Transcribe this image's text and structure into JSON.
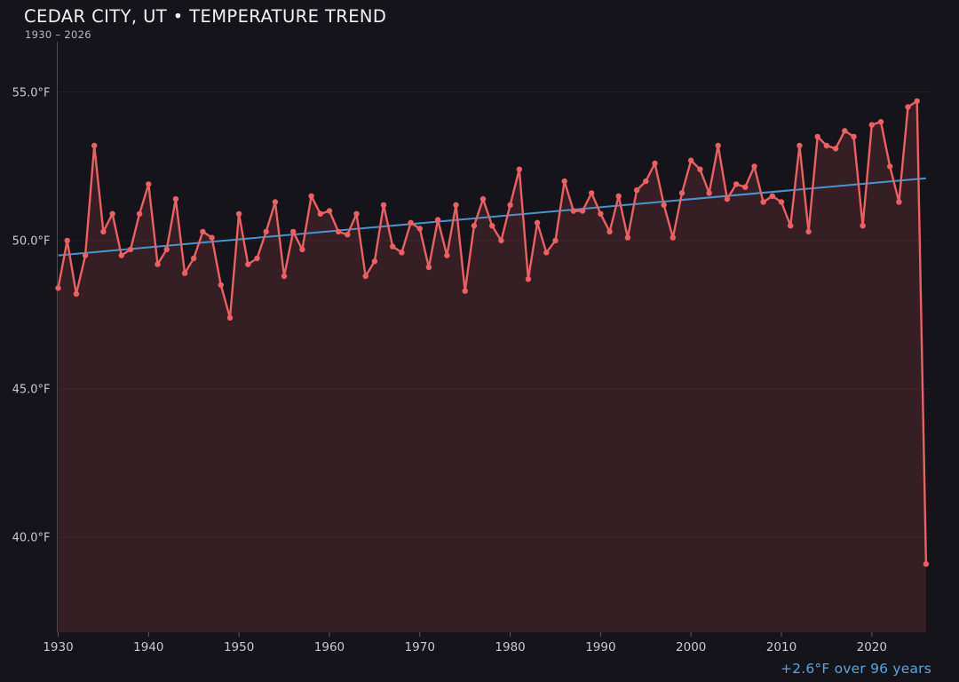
{
  "header": {
    "title": "CEDAR CITY, UT • TEMPERATURE TREND",
    "subtitle": "1930 – 2026"
  },
  "footer": {
    "trend_label": "+2.6°F over 96 years"
  },
  "colors": {
    "background": "#14141a",
    "title_text": "#f2f2f5",
    "subtitle_text": "#b9b9c2",
    "tick_text": "#c9c9d1",
    "gridline": "rgba(255,255,255,0.055)",
    "axis_spine": "#4a4a53",
    "tick_mark": "#5a5a64",
    "temperature_line": "#ec5f63",
    "temperature_marker": "#ec5f63",
    "area_fill": "rgba(233,93,99,0.16)",
    "trend_line": "#4596cf",
    "trend_label_text": "#58a6e0"
  },
  "chart_data": {
    "type": "line",
    "title": "CEDAR CITY, UT • TEMPERATURE TREND",
    "subtitle": "1930 – 2026",
    "xlabel": "",
    "ylabel": "",
    "grid": "horizontal-faint",
    "legend": "none",
    "marker": "circle",
    "area_fill": true,
    "xlim": [
      1929.9,
      2026.5
    ],
    "ylim": [
      36.8,
      56.7
    ],
    "years": [
      1930,
      1931,
      1932,
      1933,
      1934,
      1935,
      1936,
      1937,
      1938,
      1939,
      1940,
      1941,
      1942,
      1943,
      1944,
      1945,
      1946,
      1947,
      1948,
      1949,
      1950,
      1951,
      1952,
      1953,
      1954,
      1955,
      1956,
      1957,
      1958,
      1959,
      1960,
      1961,
      1962,
      1963,
      1964,
      1965,
      1966,
      1967,
      1968,
      1969,
      1970,
      1971,
      1972,
      1973,
      1974,
      1975,
      1976,
      1977,
      1978,
      1979,
      1980,
      1981,
      1982,
      1983,
      1984,
      1985,
      1986,
      1987,
      1988,
      1989,
      1990,
      1991,
      1992,
      1993,
      1994,
      1995,
      1996,
      1997,
      1998,
      1999,
      2000,
      2001,
      2002,
      2003,
      2004,
      2005,
      2006,
      2007,
      2008,
      2009,
      2010,
      2011,
      2012,
      2013,
      2014,
      2015,
      2016,
      2017,
      2018,
      2019,
      2020,
      2021,
      2022,
      2023,
      2024,
      2025,
      2026
    ],
    "values": [
      48.4,
      50.0,
      48.2,
      49.5,
      53.2,
      50.3,
      50.9,
      49.5,
      49.7,
      50.9,
      51.9,
      49.2,
      49.7,
      51.4,
      48.9,
      49.4,
      50.3,
      50.1,
      48.5,
      47.4,
      50.9,
      49.2,
      49.4,
      50.3,
      51.3,
      48.8,
      50.3,
      49.7,
      51.5,
      50.9,
      51.0,
      50.3,
      50.2,
      50.9,
      48.8,
      49.3,
      51.2,
      49.8,
      49.6,
      50.6,
      50.4,
      49.1,
      50.7,
      49.5,
      51.2,
      48.3,
      50.5,
      51.4,
      50.5,
      50.0,
      51.2,
      52.4,
      48.7,
      50.6,
      49.6,
      50.0,
      52.0,
      51.0,
      51.0,
      51.6,
      50.9,
      50.3,
      51.5,
      50.1,
      51.7,
      52.0,
      52.6,
      51.2,
      50.1,
      51.6,
      52.7,
      52.4,
      51.6,
      53.2,
      51.4,
      51.9,
      51.8,
      52.5,
      51.3,
      51.5,
      51.3,
      50.5,
      53.2,
      50.3,
      53.5,
      53.2,
      53.1,
      53.7,
      53.5,
      50.5,
      53.9,
      54.0,
      52.5,
      51.3,
      54.5,
      54.7,
      39.1
    ],
    "trend": {
      "start_year": 1930,
      "start_value": 49.5,
      "end_year": 2026,
      "end_value": 52.1,
      "change_label": "+2.6°F over 96 years"
    },
    "y_ticks": [
      {
        "value": 55,
        "label": "55.0°F"
      },
      {
        "value": 50,
        "label": "50.0°F"
      },
      {
        "value": 45,
        "label": "45.0°F"
      },
      {
        "value": 40,
        "label": "40.0°F"
      }
    ],
    "x_ticks": [
      {
        "value": 1930,
        "label": "1930"
      },
      {
        "value": 1940,
        "label": "1940"
      },
      {
        "value": 1950,
        "label": "1950"
      },
      {
        "value": 1960,
        "label": "1960"
      },
      {
        "value": 1970,
        "label": "1970"
      },
      {
        "value": 1980,
        "label": "1980"
      },
      {
        "value": 1990,
        "label": "1990"
      },
      {
        "value": 2000,
        "label": "2000"
      },
      {
        "value": 2010,
        "label": "2010"
      },
      {
        "value": 2020,
        "label": "2020"
      }
    ]
  }
}
